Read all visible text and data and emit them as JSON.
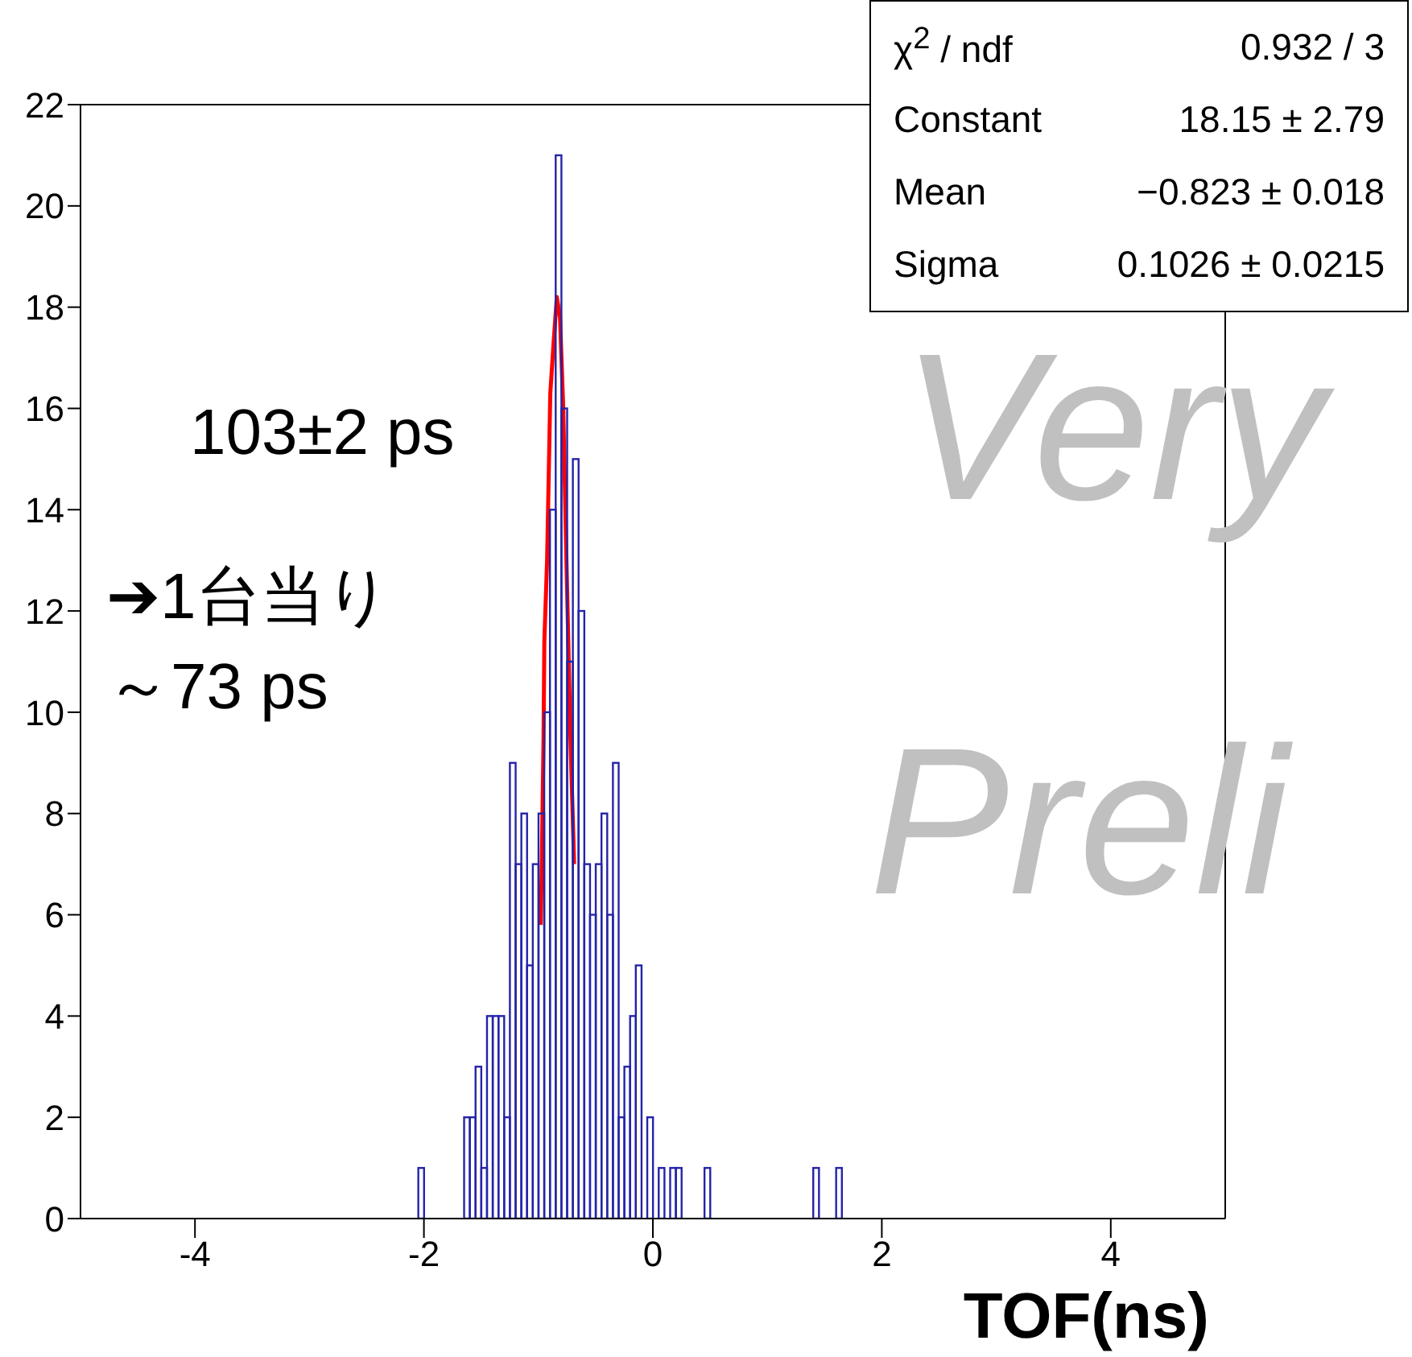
{
  "chart_data": {
    "type": "histogram",
    "xlabel": "TOF(ns)",
    "xlim": [
      -5,
      5
    ],
    "xticks": [
      -4,
      -2,
      0,
      2,
      4
    ],
    "ylim": [
      0,
      22
    ],
    "yticks": [
      0,
      2,
      4,
      6,
      8,
      10,
      12,
      14,
      16,
      18,
      20,
      22
    ],
    "series": [
      {
        "type": "histogram",
        "color": "#2424a8",
        "bins": [
          -2.05,
          -2,
          -1.95,
          -1.9,
          -1.85,
          -1.8,
          -1.75,
          -1.7,
          -1.65,
          -1.6,
          -1.55,
          -1.5,
          -1.45,
          -1.4,
          -1.35,
          -1.3,
          -1.25,
          -1.2,
          -1.15,
          -1.1,
          -1.05,
          -1,
          -0.95,
          -0.9,
          -0.85,
          -0.8,
          -0.75,
          -0.7,
          -0.65,
          -0.6,
          -0.55,
          -0.5,
          -0.45,
          -0.4,
          -0.35,
          -0.3,
          -0.25,
          -0.2,
          -0.15,
          -0.1,
          -0.05,
          0,
          0.05,
          0.1,
          0.15,
          0.2,
          0.25,
          0.3,
          0.35,
          0.4,
          0.45,
          0.5,
          0.55,
          0.6,
          0.65,
          0.7,
          0.75,
          0.8,
          0.85,
          0.9,
          0.95,
          1,
          1.05,
          1.1,
          1.15,
          1.2,
          1.25,
          1.3,
          1.35,
          1.4,
          1.45,
          1.5,
          1.55,
          1.6,
          1.65
        ],
        "values": [
          1,
          0,
          0,
          0,
          0,
          0,
          0,
          0,
          2,
          2,
          3,
          1,
          4,
          4,
          4,
          2,
          9,
          7,
          8,
          5,
          7,
          8,
          10,
          14,
          21,
          16,
          11,
          15,
          12,
          7,
          6,
          7,
          8,
          6,
          9,
          2,
          3,
          4,
          5,
          0,
          2,
          0,
          1,
          0,
          1,
          1,
          0,
          0,
          0,
          0,
          1,
          0,
          0,
          0,
          0,
          0,
          0,
          0,
          0,
          0,
          0,
          0,
          0,
          0,
          0,
          0,
          0,
          0,
          0,
          1,
          0,
          0,
          0,
          1
        ]
      },
      {
        "type": "line",
        "color": "#ff0000",
        "x": [
          -0.98,
          -0.97,
          -0.955,
          -0.948,
          -0.924,
          -0.896,
          -0.867,
          -0.839,
          -0.811,
          -0.783,
          -0.755,
          -0.736,
          -0.72,
          -0.688
        ],
        "values": [
          5.8,
          7.0,
          9.5,
          11.4,
          13.0,
          16.3,
          17.3,
          18.2,
          17.8,
          16.0,
          13.0,
          11.1,
          9.5,
          7.0
        ]
      }
    ],
    "annotations": [
      "χ$^{2}$ / ndf",
      "0.932 / 3",
      "Constant",
      "18.15 ± 2.79",
      "Mean",
      "−0.823 ± 0.018",
      "Sigma",
      "0.1026 ± 0.0215",
      "103±2 ps",
      "➔1台当り",
      "～73 ps",
      "Very",
      "Preli"
    ]
  }
}
